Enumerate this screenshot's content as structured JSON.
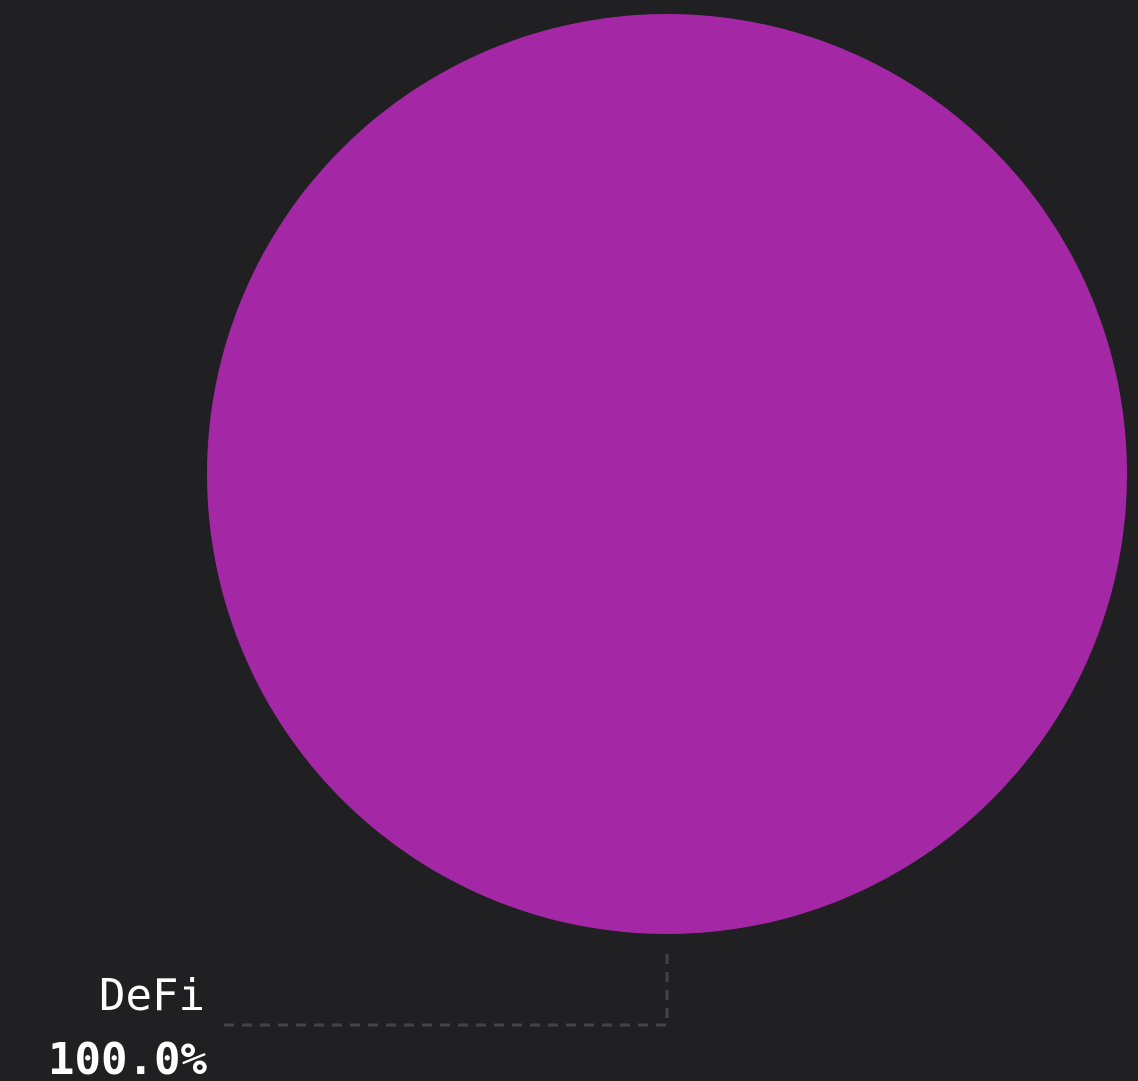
{
  "chart_data": {
    "type": "pie",
    "slices": [
      {
        "label": "DeFi",
        "value": 100.0,
        "value_label": "100.0%",
        "color": "#a428a6"
      }
    ],
    "legend": "none",
    "label_style": "leader-line",
    "background": "#202022",
    "leader_color": "#444446"
  }
}
